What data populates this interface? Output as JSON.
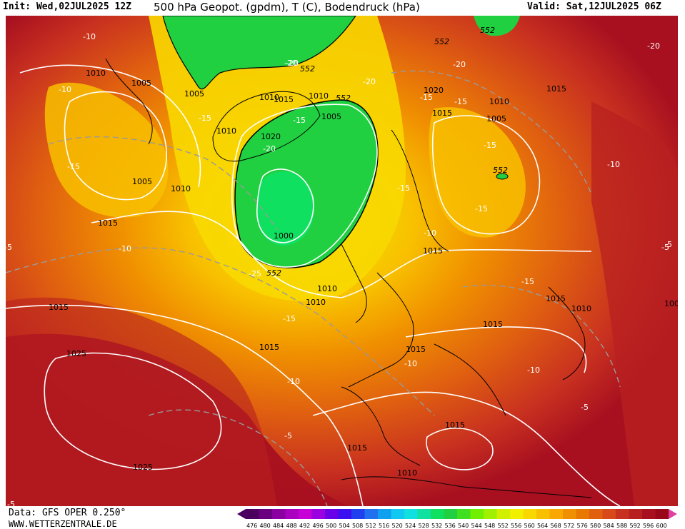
{
  "header": {
    "init": "Init: Wed,02JUL2025 12Z",
    "title": "500 hPa Geopot. (gpdm), T (C), Bodendruck (hPa)",
    "valid": "Valid: Sat,12JUL2025 06Z"
  },
  "footer": {
    "data_source": "Data: GFS OPER 0.250°",
    "website": "WWW.WETTERZENTRALE.DE"
  },
  "legend": {
    "values": [
      "476",
      "480",
      "484",
      "488",
      "492",
      "496",
      "500",
      "504",
      "508",
      "512",
      "516",
      "520",
      "524",
      "528",
      "532",
      "536",
      "540",
      "544",
      "548",
      "552",
      "556",
      "560",
      "564",
      "568",
      "572",
      "576",
      "580",
      "584",
      "588",
      "592",
      "596",
      "600"
    ],
    "colors": [
      "#4b0060",
      "#6a0080",
      "#8a00a0",
      "#aa00c0",
      "#c800d8",
      "#9a00e0",
      "#6a00e8",
      "#3a10f0",
      "#2040f0",
      "#2070f0",
      "#10a0f0",
      "#10c8f0",
      "#10e0e0",
      "#10e0a0",
      "#10e060",
      "#20d040",
      "#40e020",
      "#70f000",
      "#a0f000",
      "#d0f000",
      "#f0f000",
      "#f8d800",
      "#f8c000",
      "#f8a800",
      "#f09000",
      "#e87800",
      "#e06010",
      "#d84818",
      "#c83020",
      "#b82020",
      "#a81020",
      "#980818"
    ]
  },
  "map": {
    "pressure_labels": [
      "1010",
      "1005",
      "1005",
      "1010",
      "1015",
      "1010",
      "1010",
      "1005",
      "1020",
      "1015",
      "1005",
      "1010",
      "1015",
      "1020",
      "1015",
      "1010",
      "1005",
      "1000",
      "1010",
      "1015",
      "1025",
      "1025",
      "1015",
      "1015",
      "1015",
      "1015",
      "1010",
      "1010",
      "1015",
      "1015",
      "1010",
      "100",
      "1015"
    ],
    "temperature_labels": [
      "-10",
      "-10",
      "-15",
      "-15",
      "-20",
      "-20",
      "-20",
      "-20",
      "-15",
      "-15",
      "-15",
      "-10",
      "-10",
      "-15",
      "-10",
      "-25",
      "-15",
      "-10",
      "-10",
      "-5",
      "-5",
      "-15",
      "-10",
      "-20",
      "-15",
      "-5",
      "-5",
      "5",
      "-5",
      "-20",
      "-15"
    ],
    "geopotential_labels": [
      "552",
      "552",
      "552",
      "552",
      "552",
      "552"
    ]
  }
}
